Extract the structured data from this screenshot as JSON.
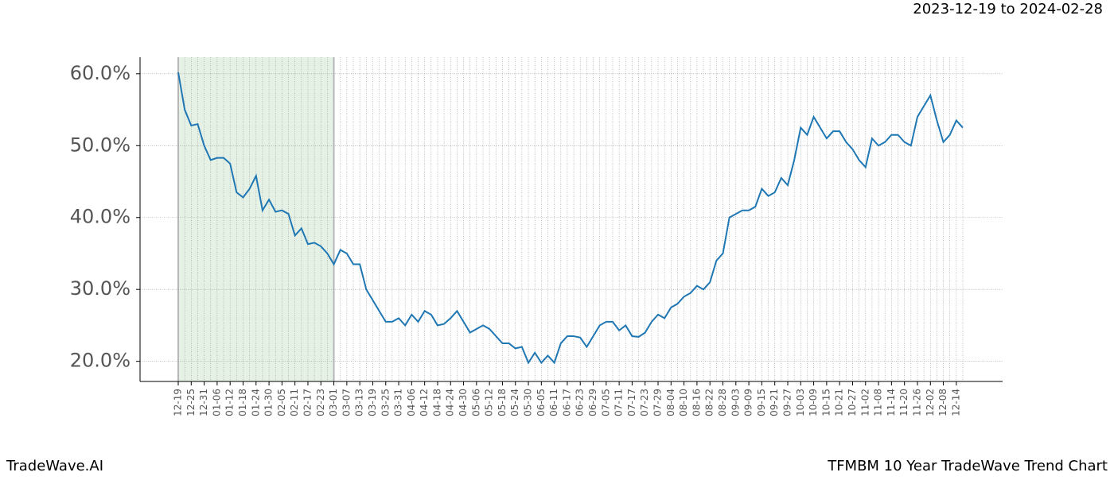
{
  "chart_data": {
    "type": "line",
    "title": "2023-12-19 to 2024-02-28",
    "footer_left": "TradeWave.AI",
    "footer_right": "TFMBM 10 Year TradeWave Trend Chart",
    "categories": [
      "12-19",
      null,
      "12-25",
      null,
      "12-31",
      null,
      "01-06",
      null,
      "01-12",
      null,
      "01-18",
      null,
      "01-24",
      null,
      "01-30",
      null,
      "02-05",
      null,
      "02-11",
      null,
      "02-17",
      null,
      "02-23",
      null,
      "03-01",
      null,
      "03-07",
      null,
      "03-13",
      null,
      "03-19",
      null,
      "03-25",
      null,
      "03-31",
      null,
      "04-06",
      null,
      "04-12",
      null,
      "04-18",
      null,
      "04-24",
      null,
      "04-30",
      null,
      "05-06",
      null,
      "05-12",
      null,
      "05-18",
      null,
      "05-24",
      null,
      "05-30",
      null,
      "06-05",
      null,
      "06-11",
      null,
      "06-17",
      null,
      "06-23",
      null,
      "06-29",
      null,
      "07-05",
      null,
      "07-11",
      null,
      "07-17",
      null,
      "07-23",
      null,
      "07-29",
      null,
      "08-04",
      null,
      "08-10",
      null,
      "08-16",
      null,
      "08-22",
      null,
      "08-28",
      null,
      "09-03",
      null,
      "09-09",
      null,
      "09-15",
      null,
      "09-21",
      null,
      "09-27",
      null,
      "10-03",
      null,
      "10-09",
      null,
      "10-15",
      null,
      "10-21",
      null,
      "10-27",
      null,
      "11-02",
      null,
      "11-08",
      null,
      "11-14",
      null,
      "11-20",
      null,
      "11-26",
      null,
      "12-02",
      null,
      "12-08",
      null,
      "12-14",
      null
    ],
    "series": [
      {
        "color": "#1f77b4",
        "values": [
          60.2,
          55,
          52.8,
          53,
          50,
          48,
          48.3,
          48.3,
          47.5,
          43.5,
          42.8,
          44,
          45.8,
          41,
          42.5,
          40.8,
          41,
          40.5,
          37.5,
          38.5,
          36.3,
          36.5,
          36,
          35,
          33.5,
          35.5,
          35,
          33.5,
          33.5,
          30,
          28.5,
          27,
          25.5,
          25.5,
          26,
          25,
          26.5,
          25.5,
          27,
          26.5,
          25,
          25.2,
          26,
          27,
          25.5,
          24,
          24.5,
          25,
          24.5,
          23.5,
          22.5,
          22.5,
          21.8,
          22,
          19.8,
          21.2,
          19.8,
          20.8,
          19.8,
          22.5,
          23.5,
          23.5,
          23.3,
          22,
          23.5,
          25,
          25.5,
          25.5,
          24.3,
          25,
          23.5,
          23.4,
          24,
          25.5,
          26.5,
          26,
          27.5,
          28,
          29,
          29.5,
          30.5,
          30,
          31,
          34,
          35,
          40,
          40.5,
          41,
          41,
          41.5,
          44,
          43,
          43.5,
          45.5,
          44.5,
          48,
          52.5,
          51.5,
          54,
          52.5,
          51,
          52,
          52,
          50.5,
          49.5,
          48,
          47,
          51,
          50,
          50.5,
          51.5,
          51.5,
          50.5,
          50,
          54,
          55.5,
          57,
          53.5,
          50.5,
          51.5,
          53.5,
          52.5
        ]
      }
    ],
    "shaded_range": [
      "12-19",
      "03-01"
    ],
    "shade_color": "#2e8b2e",
    "ylim": [
      17.2,
      62.3
    ],
    "yticks": [
      {
        "value": 20,
        "label": "20.0%"
      },
      {
        "value": 30,
        "label": "30.0%"
      },
      {
        "value": 40,
        "label": "40.0%"
      },
      {
        "value": 50,
        "label": "50.0%"
      },
      {
        "value": 60,
        "label": "60.0%"
      }
    ],
    "grid": true
  }
}
